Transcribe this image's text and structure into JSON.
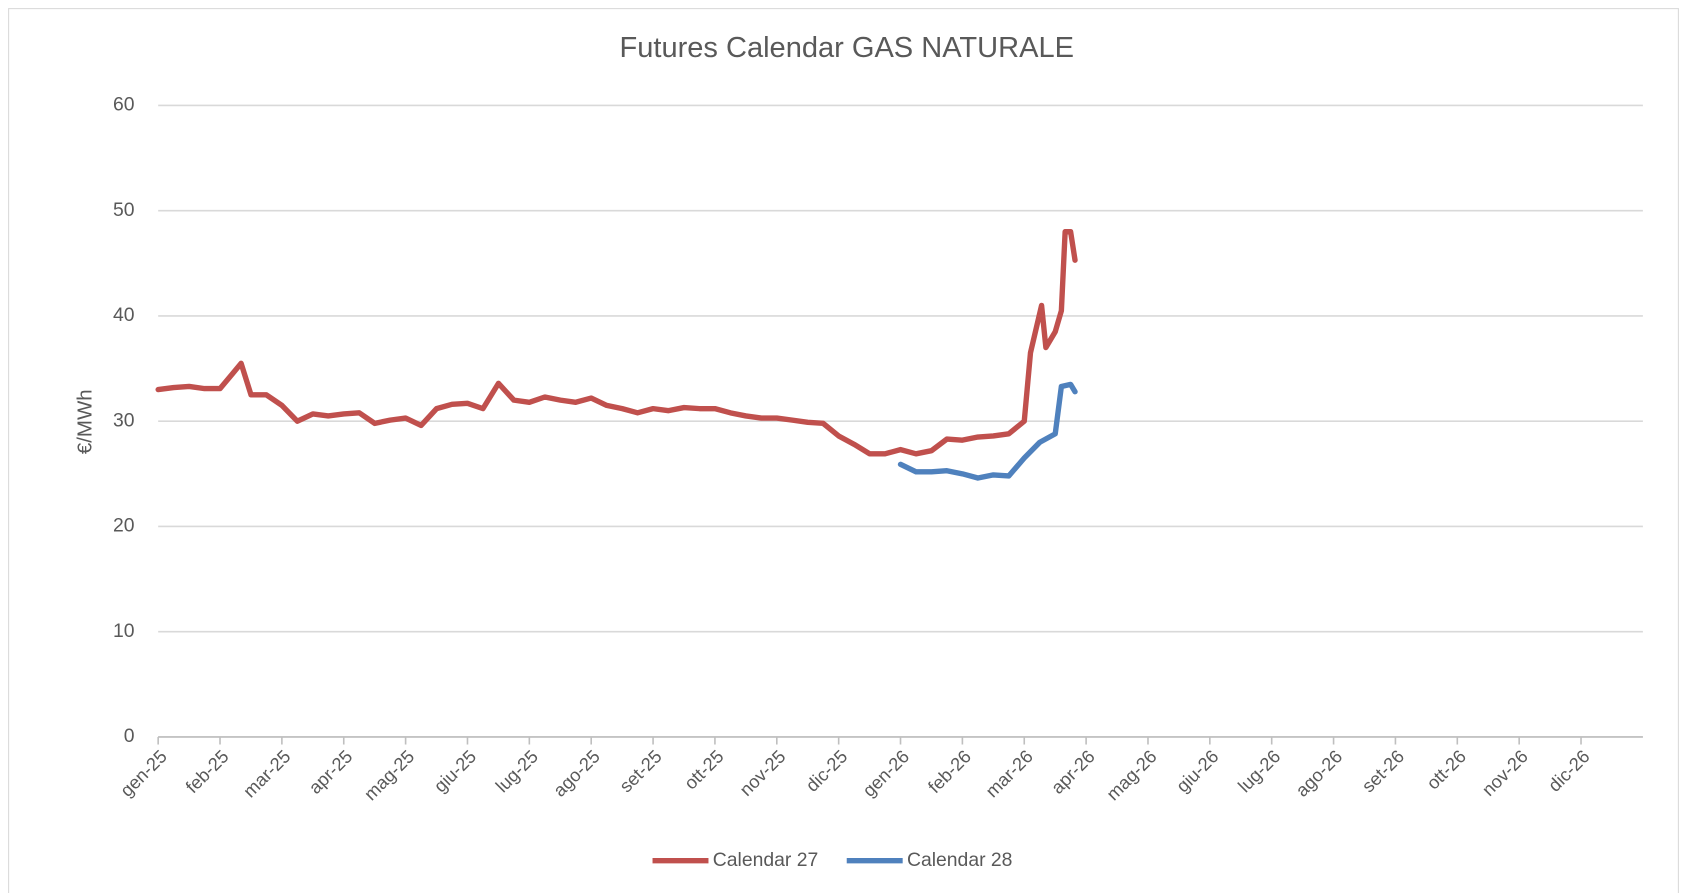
{
  "chart_data": {
    "type": "line",
    "title": "Futures Calendar GAS NATURALE",
    "ylabel": "€/MWh",
    "xlim": [
      0,
      24
    ],
    "xticks": [
      {
        "value": 0,
        "label": "gen-25"
      },
      {
        "value": 1,
        "label": "feb-25"
      },
      {
        "value": 2,
        "label": "mar-25"
      },
      {
        "value": 3,
        "label": "apr-25"
      },
      {
        "value": 4,
        "label": "mag-25"
      },
      {
        "value": 5,
        "label": "giu-25"
      },
      {
        "value": 6,
        "label": "lug-25"
      },
      {
        "value": 7,
        "label": "ago-25"
      },
      {
        "value": 8,
        "label": "set-25"
      },
      {
        "value": 9,
        "label": "ott-25"
      },
      {
        "value": 10,
        "label": "nov-25"
      },
      {
        "value": 11,
        "label": "dic-25"
      },
      {
        "value": 12,
        "label": "gen-26"
      },
      {
        "value": 13,
        "label": "feb-26"
      },
      {
        "value": 14,
        "label": "mar-26"
      },
      {
        "value": 15,
        "label": "apr-26"
      },
      {
        "value": 16,
        "label": "mag-26"
      },
      {
        "value": 17,
        "label": "giu-26"
      },
      {
        "value": 18,
        "label": "lug-26"
      },
      {
        "value": 19,
        "label": "ago-26"
      },
      {
        "value": 20,
        "label": "set-26"
      },
      {
        "value": 21,
        "label": "ott-26"
      },
      {
        "value": 22,
        "label": "nov-26"
      },
      {
        "value": 23,
        "label": "dic-26"
      }
    ],
    "ylim": [
      0,
      60
    ],
    "yticks": [
      0,
      10,
      20,
      30,
      40,
      50,
      60
    ],
    "grid": true,
    "legend": "bottom",
    "series": [
      {
        "name": "Calendar 27",
        "color": "#c0504d",
        "x": [
          0,
          0.25,
          0.5,
          0.75,
          1,
          1.2,
          1.34,
          1.5,
          1.75,
          2,
          2.25,
          2.5,
          2.75,
          3,
          3.25,
          3.5,
          3.75,
          4,
          4.25,
          4.5,
          4.75,
          5,
          5.25,
          5.5,
          5.75,
          6,
          6.25,
          6.5,
          6.75,
          7,
          7.25,
          7.5,
          7.75,
          8,
          8.25,
          8.5,
          8.75,
          9,
          9.25,
          9.5,
          9.75,
          10,
          10.25,
          10.5,
          10.75,
          11,
          11.25,
          11.5,
          11.75,
          12,
          12.25,
          12.5,
          12.75,
          13,
          13.25,
          13.5,
          13.75,
          14,
          14.1,
          14.28,
          14.35,
          14.5,
          14.6,
          14.66,
          14.75,
          14.82
        ],
        "values": [
          33.0,
          33.2,
          33.3,
          33.1,
          33.1,
          34.5,
          35.5,
          32.5,
          32.5,
          31.5,
          30.0,
          30.7,
          30.5,
          30.7,
          30.8,
          29.8,
          30.1,
          30.3,
          29.6,
          31.2,
          31.6,
          31.7,
          31.2,
          33.6,
          32.0,
          31.8,
          32.3,
          32.0,
          31.8,
          32.2,
          31.5,
          31.2,
          30.8,
          31.2,
          31.0,
          31.3,
          31.2,
          31.2,
          30.8,
          30.5,
          30.3,
          30.3,
          30.1,
          29.9,
          29.8,
          28.6,
          27.8,
          26.9,
          26.9,
          27.3,
          26.9,
          27.2,
          28.3,
          28.2,
          28.5,
          28.6,
          28.8,
          30.0,
          36.5,
          41.0,
          37.0,
          38.5,
          40.5,
          48.0,
          48.0,
          45.3
        ]
      },
      {
        "name": "Calendar 28",
        "color": "#4f81bd",
        "x": [
          12,
          12.25,
          12.5,
          12.75,
          13,
          13.25,
          13.5,
          13.75,
          14,
          14.25,
          14.5,
          14.6,
          14.75,
          14.82
        ],
        "values": [
          25.9,
          25.2,
          25.2,
          25.3,
          25.0,
          24.6,
          24.9,
          24.8,
          26.5,
          28.0,
          28.8,
          33.3,
          33.5,
          32.8
        ]
      }
    ]
  }
}
